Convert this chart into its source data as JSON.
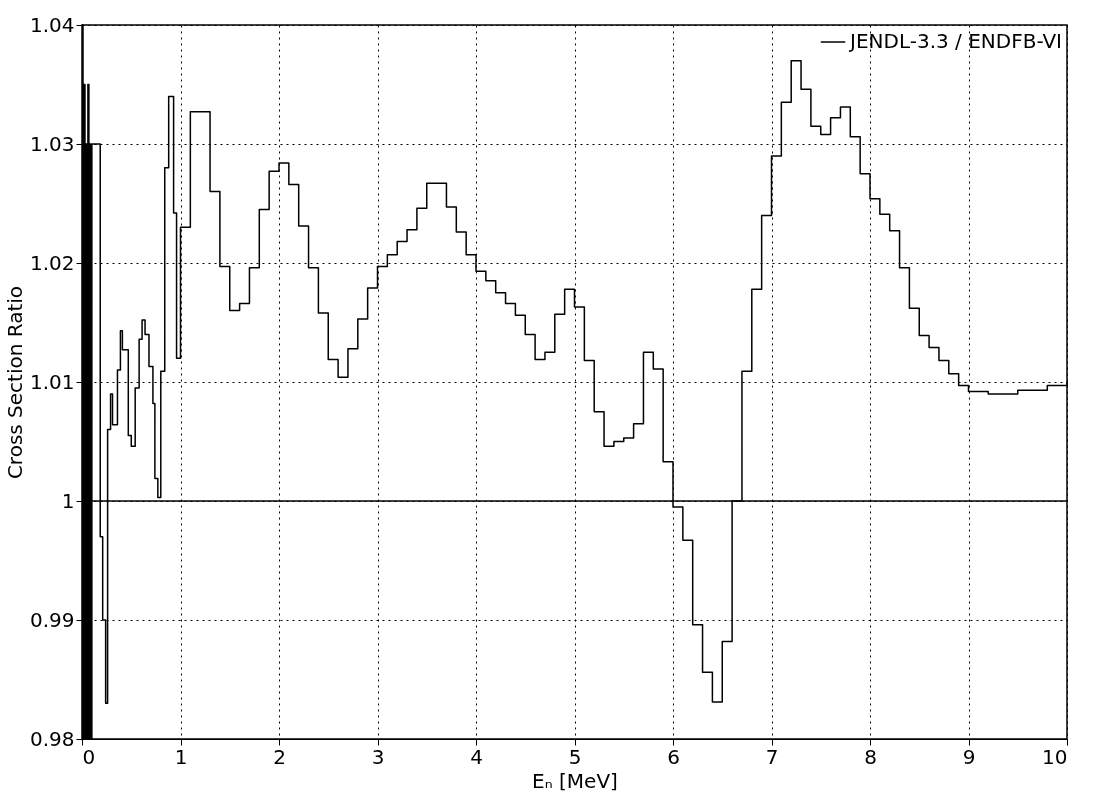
{
  "chart_data": {
    "type": "step",
    "xlabel": "Eₙ [MeV]",
    "ylabel": "Cross Section Ratio",
    "xlim": [
      0,
      10
    ],
    "xticks": [
      0,
      1,
      2,
      3,
      4,
      5,
      6,
      7,
      8,
      9,
      10
    ],
    "ylim": [
      0.98,
      1.04
    ],
    "yticks": [
      0.98,
      0.99,
      1,
      1.01,
      1.02,
      1.03,
      1.04
    ],
    "grid": true,
    "legend": "top right",
    "line_style": "solid",
    "marker": "none",
    "ref_lines": [
      {
        "axis": "y",
        "value": 1,
        "color": "#000000"
      }
    ],
    "series": [
      {
        "name": "JENDL-3.3 / ENDFB-VI",
        "color": "#000000",
        "x": [
          0,
          0.01,
          0.02,
          0.03,
          0.04,
          0.05,
          0.06,
          0.07,
          0.08,
          0.09,
          0.1,
          0.185,
          0.21,
          0.24,
          0.26,
          0.29,
          0.31,
          0.36,
          0.39,
          0.41,
          0.47,
          0.5,
          0.54,
          0.58,
          0.61,
          0.64,
          0.68,
          0.72,
          0.74,
          0.77,
          0.8,
          0.84,
          0.88,
          0.93,
          0.96,
          1.0,
          1.1,
          1.3,
          1.4,
          1.5,
          1.6,
          1.7,
          1.8,
          1.9,
          2.0,
          2.1,
          2.2,
          2.3,
          2.4,
          2.5,
          2.6,
          2.7,
          2.8,
          2.9,
          3.0,
          3.1,
          3.2,
          3.3,
          3.4,
          3.5,
          3.7,
          3.8,
          3.9,
          4.0,
          4.1,
          4.2,
          4.3,
          4.4,
          4.5,
          4.6,
          4.7,
          4.8,
          4.9,
          5.0,
          5.1,
          5.2,
          5.3,
          5.4,
          5.5,
          5.6,
          5.7,
          5.8,
          5.9,
          6.0,
          6.1,
          6.2,
          6.3,
          6.4,
          6.5,
          6.6,
          6.7,
          6.8,
          6.9,
          7.0,
          7.1,
          7.2,
          7.3,
          7.4,
          7.5,
          7.6,
          7.7,
          7.8,
          7.9,
          8.0,
          8.1,
          8.2,
          8.3,
          8.4,
          8.5,
          8.6,
          8.7,
          8.8,
          8.9,
          9.0,
          9.2,
          9.5,
          9.8,
          10.0
        ],
        "values": [
          1.04,
          0.98,
          1.035,
          0.98,
          1.03,
          0.98,
          1.035,
          0.98,
          1.03,
          0.98,
          1.03,
          0.997,
          0.99,
          0.983,
          1.006,
          1.009,
          1.0064,
          1.011,
          1.0143,
          1.0127,
          1.0055,
          1.0046,
          1.0095,
          1.0136,
          1.0152,
          1.014,
          1.0113,
          1.0082,
          1.0019,
          1.0003,
          1.0109,
          1.028,
          1.034,
          1.0242,
          1.012,
          1.023,
          1.0327,
          1.026,
          1.0197,
          1.016,
          1.0166,
          1.0196,
          1.0245,
          1.0277,
          1.0284,
          1.0266,
          1.0231,
          1.0196,
          1.0158,
          1.0119,
          1.0104,
          1.0128,
          1.0153,
          1.0179,
          1.0197,
          1.0207,
          1.0218,
          1.0228,
          1.0246,
          1.0267,
          1.0247,
          1.0226,
          1.0207,
          1.0193,
          1.0185,
          1.0175,
          1.0166,
          1.0156,
          1.014,
          1.0119,
          1.0125,
          1.0157,
          1.0178,
          1.0163,
          1.0118,
          1.0075,
          1.0046,
          1.005,
          1.0053,
          1.0065,
          1.0125,
          1.0111,
          1.0033,
          0.9995,
          0.9967,
          0.9896,
          0.9856,
          0.9831,
          0.9882,
          1.0,
          1.0109,
          1.0178,
          1.024,
          1.029,
          1.0335,
          1.037,
          1.0346,
          1.0315,
          1.0308,
          1.0322,
          1.0331,
          1.0306,
          1.0275,
          1.0254,
          1.0241,
          1.0227,
          1.0196,
          1.0162,
          1.0139,
          1.0129,
          1.0118,
          1.0107,
          1.0097,
          1.0092,
          1.009,
          1.0093,
          1.0097,
          1.01
        ]
      }
    ]
  }
}
